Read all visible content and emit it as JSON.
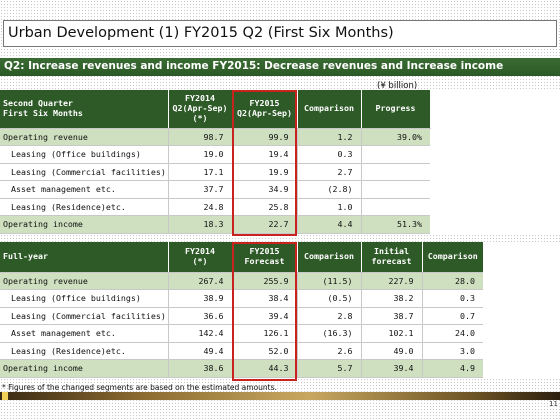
{
  "title": "Urban Development (1) FY2015 Q2 (First Six Months)",
  "banner": "Q2: Increase revenues and income FY2015: Decrease revenues and Increase income",
  "unit_note": "(¥ billion)",
  "q2": {
    "headers": [
      "Second Quarter\nFirst Six Months",
      "FY2014\nQ2(Apr-Sep)\n(*)",
      "FY2015\nQ2(Apr-Sep)",
      "Comparison",
      "Progress"
    ],
    "rows": [
      {
        "label": "Operating revenue",
        "fy2014": "98.7",
        "fy2015": "99.9",
        "comparison": "1.2",
        "progress": "39.0%",
        "strong": true
      },
      {
        "label": "Leasing (Office buildings)",
        "fy2014": "19.0",
        "fy2015": "19.4",
        "comparison": "0.3",
        "progress": ""
      },
      {
        "label": "Leasing (Commercial facilities)",
        "fy2014": "17.1",
        "fy2015": "19.9",
        "comparison": "2.7",
        "progress": ""
      },
      {
        "label": "Asset management etc.",
        "fy2014": "37.7",
        "fy2015": "34.9",
        "comparison": "(2.8)",
        "progress": ""
      },
      {
        "label": "Leasing (Residence)etc.",
        "fy2014": "24.8",
        "fy2015": "25.8",
        "comparison": "1.0",
        "progress": ""
      },
      {
        "label": "Operating income",
        "fy2014": "18.3",
        "fy2015": "22.7",
        "comparison": "4.4",
        "progress": "51.3%",
        "strong": true
      }
    ]
  },
  "fy": {
    "headers": [
      "Full-year",
      "FY2014\n(*)",
      "FY2015\nForecast",
      "Comparison",
      "Initial\nforecast",
      "Comparison"
    ],
    "rows": [
      {
        "label": "Operating revenue",
        "fy2014": "267.4",
        "fy2015": "255.9",
        "comparison": "(11.5)",
        "initial": "227.9",
        "comparison2": "28.0",
        "strong": true
      },
      {
        "label": "Leasing (Office buildings)",
        "fy2014": "38.9",
        "fy2015": "38.4",
        "comparison": "(0.5)",
        "initial": "38.2",
        "comparison2": "0.3"
      },
      {
        "label": "Leasing (Commercial facilities)",
        "fy2014": "36.6",
        "fy2015": "39.4",
        "comparison": "2.8",
        "initial": "38.7",
        "comparison2": "0.7"
      },
      {
        "label": "Asset management etc.",
        "fy2014": "142.4",
        "fy2015": "126.1",
        "comparison": "(16.3)",
        "initial": "102.1",
        "comparison2": "24.0"
      },
      {
        "label": "Leasing (Residence)etc.",
        "fy2014": "49.4",
        "fy2015": "52.0",
        "comparison": "2.6",
        "initial": "49.0",
        "comparison2": "3.0"
      },
      {
        "label": "Operating income",
        "fy2014": "38.6",
        "fy2015": "44.3",
        "comparison": "5.7",
        "initial": "39.4",
        "comparison2": "4.9",
        "strong": true
      }
    ]
  },
  "footnote": "* Figures of the changed segments are based on the estimated amounts.",
  "page_number": "11",
  "colors": {
    "header_green": "#2e5a28",
    "highlight_row": "#cfe0c0",
    "red_box": "#c8231e"
  }
}
